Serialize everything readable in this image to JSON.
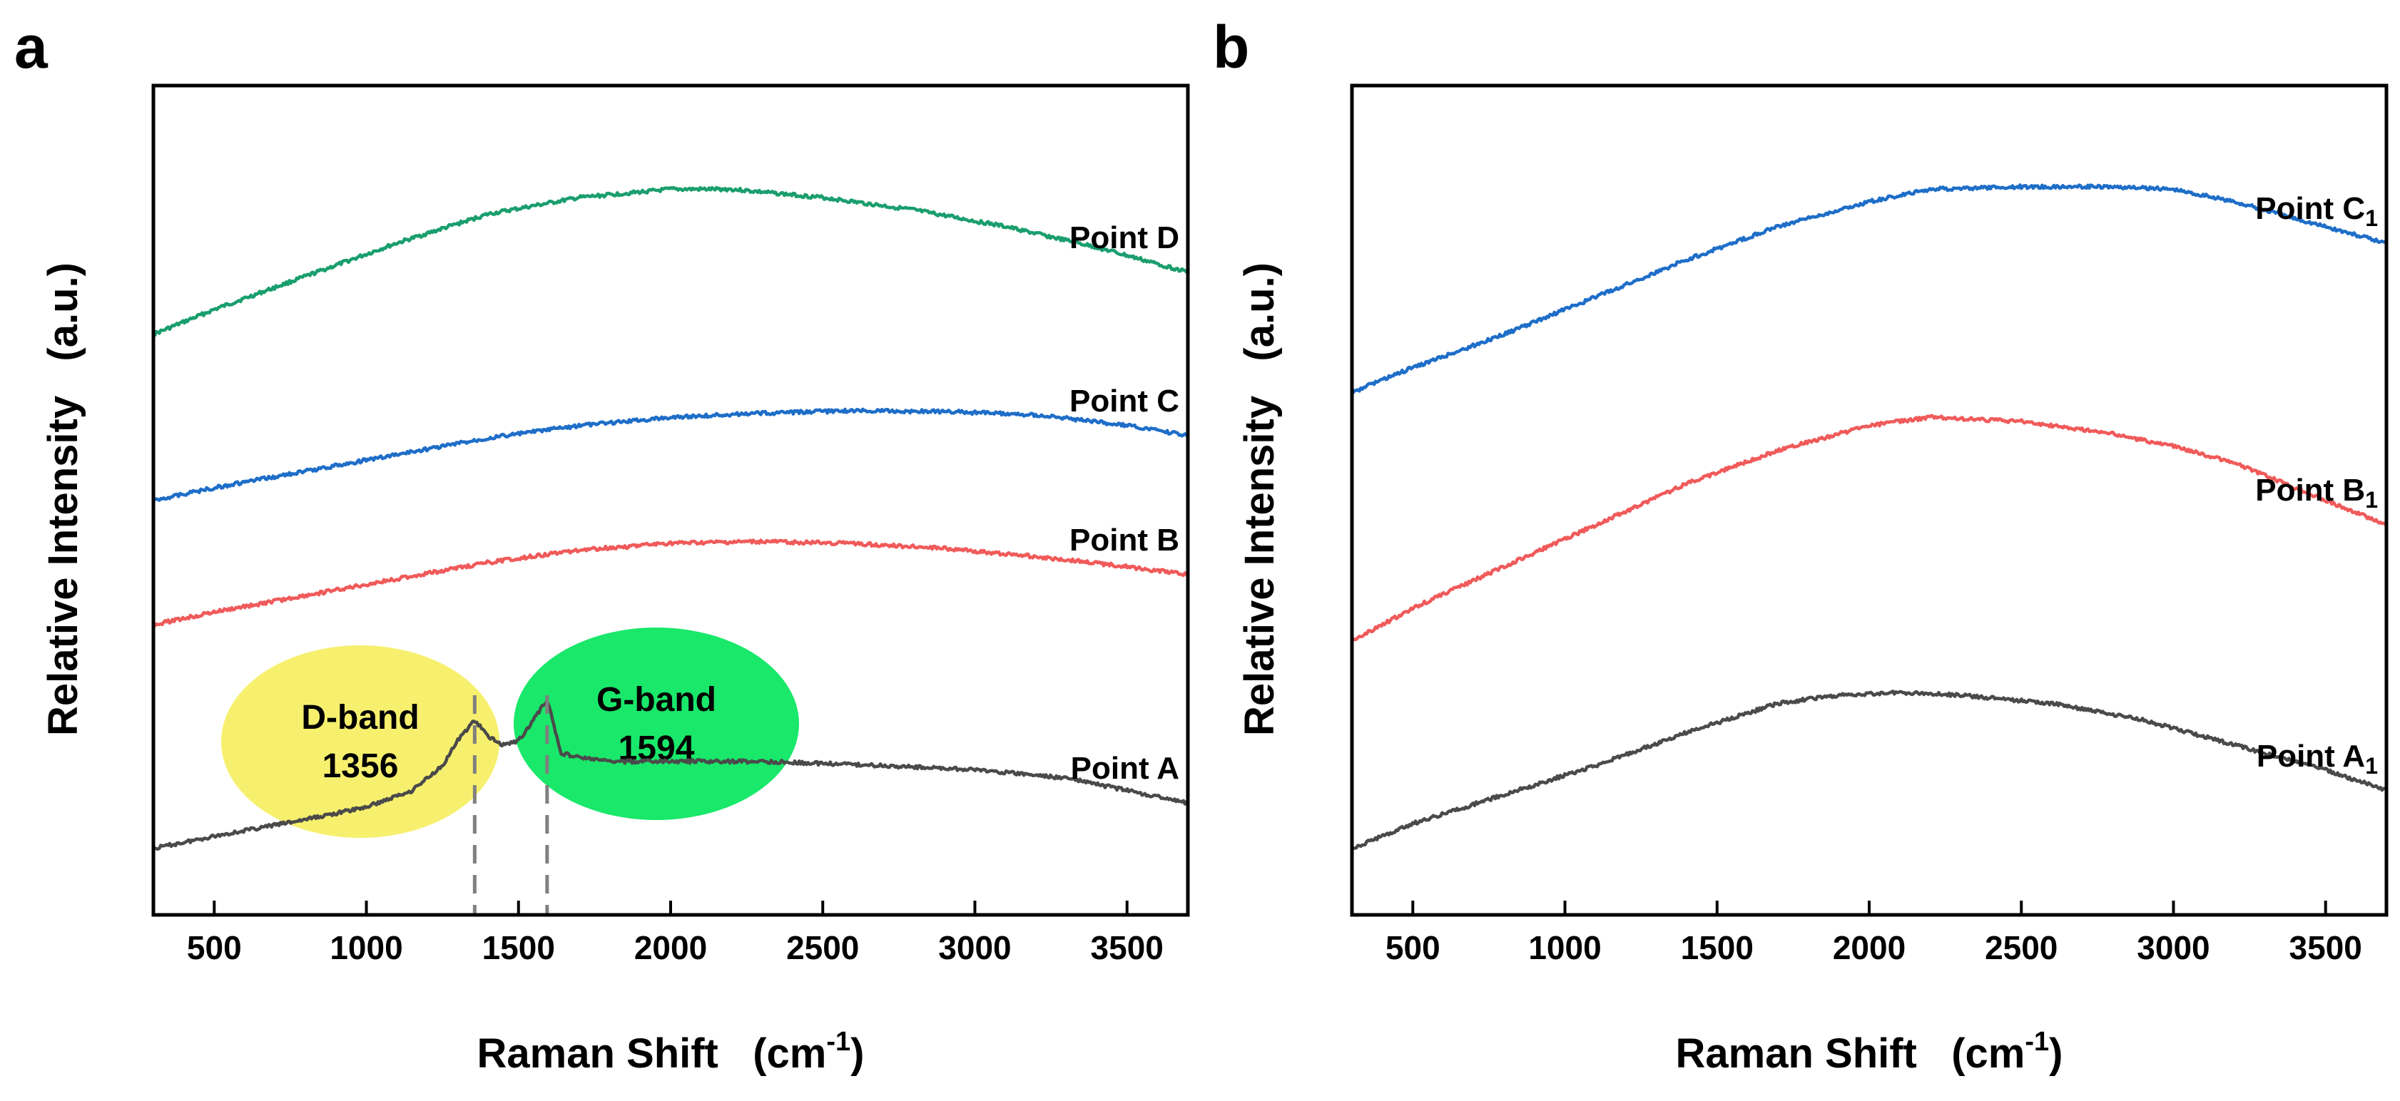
{
  "chart_data": [
    {
      "panel": "a",
      "type": "line",
      "xlabel": "Raman Shift",
      "xlabel_unit": "(cm",
      "xlabel_unit_sup": "-1",
      "xlabel_unit_close": ")",
      "ylabel": "Relative Intensity   (a.u.)",
      "xlim": [
        300,
        3700
      ],
      "xticks": [
        500,
        1000,
        1500,
        2000,
        2500,
        3000,
        3500
      ],
      "yticks": "none",
      "grid": false,
      "stacked_offset": true,
      "series": [
        {
          "name": "Point D",
          "sub": "",
          "color": "#1a9e6e",
          "x": [
            300,
            500,
            800,
            1100,
            1400,
            1700,
            2000,
            2200,
            2500,
            2800,
            3100,
            3400,
            3700
          ],
          "y": [
            0.7,
            0.73,
            0.77,
            0.81,
            0.845,
            0.865,
            0.875,
            0.875,
            0.865,
            0.85,
            0.83,
            0.805,
            0.775
          ]
        },
        {
          "name": "Point C",
          "sub": "",
          "color": "#1e6ec8",
          "x": [
            300,
            500,
            800,
            1100,
            1400,
            1700,
            2000,
            2300,
            2600,
            2900,
            3200,
            3500,
            3700
          ],
          "y": [
            0.5,
            0.515,
            0.535,
            0.555,
            0.575,
            0.59,
            0.6,
            0.605,
            0.608,
            0.607,
            0.603,
            0.59,
            0.578
          ]
        },
        {
          "name": "Point B",
          "sub": "",
          "color": "#f05a5a",
          "x": [
            300,
            500,
            800,
            1100,
            1400,
            1700,
            2000,
            2300,
            2600,
            2900,
            3200,
            3500,
            3700
          ],
          "y": [
            0.35,
            0.365,
            0.385,
            0.405,
            0.425,
            0.44,
            0.448,
            0.45,
            0.448,
            0.442,
            0.432,
            0.42,
            0.41
          ]
        },
        {
          "name": "Point A",
          "sub": "",
          "color": "#4a4a4a",
          "x": [
            300,
            500,
            800,
            1000,
            1150,
            1250,
            1300,
            1356,
            1400,
            1450,
            1500,
            1540,
            1594,
            1640,
            1700,
            1800,
            2000,
            2300,
            2700,
            3000,
            3300,
            3500,
            3700
          ],
          "y": [
            0.08,
            0.095,
            0.115,
            0.13,
            0.15,
            0.18,
            0.21,
            0.235,
            0.215,
            0.205,
            0.21,
            0.23,
            0.26,
            0.195,
            0.19,
            0.185,
            0.185,
            0.185,
            0.18,
            0.175,
            0.165,
            0.15,
            0.135
          ]
        }
      ],
      "annotations": [
        {
          "text_line1": "D-band",
          "text_line2": "1356",
          "x": 1356,
          "color": "#f7f06e"
        },
        {
          "text_line1": "G-band",
          "text_line2": "1594",
          "x": 1594,
          "color": "#19e86a"
        }
      ]
    },
    {
      "panel": "b",
      "type": "line",
      "xlabel": "Raman Shift",
      "xlabel_unit": "(cm",
      "xlabel_unit_sup": "-1",
      "xlabel_unit_close": ")",
      "ylabel": "Relative Intensity   (a.u.)",
      "xlim": [
        300,
        3700
      ],
      "xticks": [
        500,
        1000,
        1500,
        2000,
        2500,
        3000,
        3500
      ],
      "yticks": "none",
      "grid": false,
      "stacked_offset": true,
      "series": [
        {
          "name": "Point C",
          "sub": "1",
          "color": "#1e6ec8",
          "x": [
            300,
            500,
            800,
            1100,
            1400,
            1700,
            2000,
            2200,
            2500,
            2800,
            3000,
            3200,
            3500,
            3700
          ],
          "y": [
            0.63,
            0.66,
            0.7,
            0.745,
            0.79,
            0.83,
            0.86,
            0.875,
            0.878,
            0.878,
            0.875,
            0.86,
            0.83,
            0.81
          ]
        },
        {
          "name": "Point B",
          "sub": "1",
          "color": "#f05a5a",
          "x": [
            300,
            500,
            800,
            1100,
            1400,
            1700,
            2000,
            2200,
            2500,
            2800,
            3000,
            3200,
            3500,
            3700
          ],
          "y": [
            0.33,
            0.37,
            0.42,
            0.47,
            0.52,
            0.56,
            0.59,
            0.6,
            0.595,
            0.58,
            0.565,
            0.545,
            0.5,
            0.47
          ]
        },
        {
          "name": "Point A",
          "sub": "1",
          "color": "#4a4a4a",
          "x": [
            300,
            500,
            800,
            1100,
            1400,
            1700,
            1900,
            2100,
            2300,
            2600,
            2900,
            3100,
            3300,
            3500,
            3700
          ],
          "y": [
            0.08,
            0.11,
            0.145,
            0.18,
            0.22,
            0.255,
            0.265,
            0.268,
            0.265,
            0.255,
            0.235,
            0.215,
            0.195,
            0.175,
            0.15
          ]
        }
      ]
    }
  ]
}
